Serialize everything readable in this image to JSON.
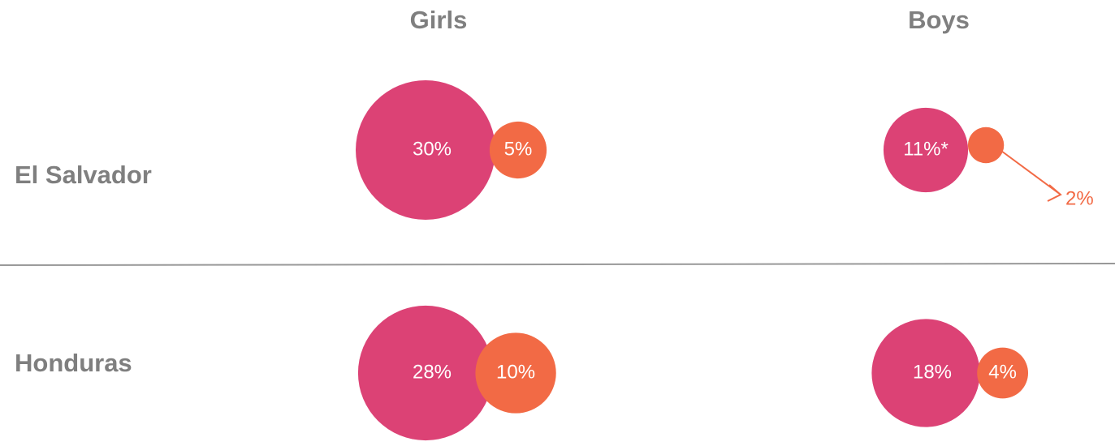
{
  "chart_data": {
    "type": "bubble",
    "columns": [
      "Girls",
      "Boys"
    ],
    "rows": [
      "El Salvador",
      "Honduras"
    ],
    "series": [
      {
        "color": "#dc4275",
        "values": [
          30,
          11,
          28,
          18
        ],
        "value_labels": [
          "30%",
          "11%*",
          "28%",
          "18%"
        ]
      },
      {
        "color": "#f26a45",
        "values": [
          5,
          2,
          10,
          4
        ],
        "value_labels": [
          "5%",
          "2%",
          "10%",
          "4%"
        ]
      }
    ]
  }
}
